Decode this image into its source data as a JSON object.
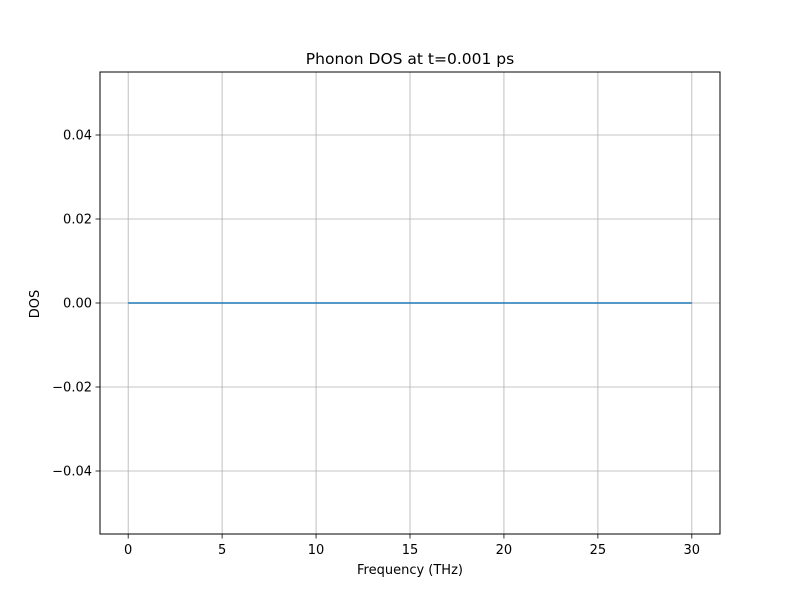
{
  "chart_data": {
    "type": "line",
    "title": "Phonon DOS at t=0.001 ps",
    "xlabel": "Frequency (THz)",
    "ylabel": "DOS",
    "xlim": [
      -1.5,
      31.5
    ],
    "ylim": [
      -0.055,
      0.055
    ],
    "xticks": [
      0,
      5,
      10,
      15,
      20,
      25,
      30
    ],
    "yticks": [
      -0.04,
      -0.02,
      0.0,
      0.02,
      0.04
    ],
    "xtick_labels": [
      "0",
      "5",
      "10",
      "15",
      "20",
      "25",
      "30"
    ],
    "ytick_labels": [
      "−0.04",
      "−0.02",
      "0.00",
      "0.02",
      "0.04"
    ],
    "grid": true,
    "series": [
      {
        "color": "#1f77b4",
        "x": [
          0,
          30
        ],
        "y": [
          0,
          0
        ]
      }
    ]
  }
}
